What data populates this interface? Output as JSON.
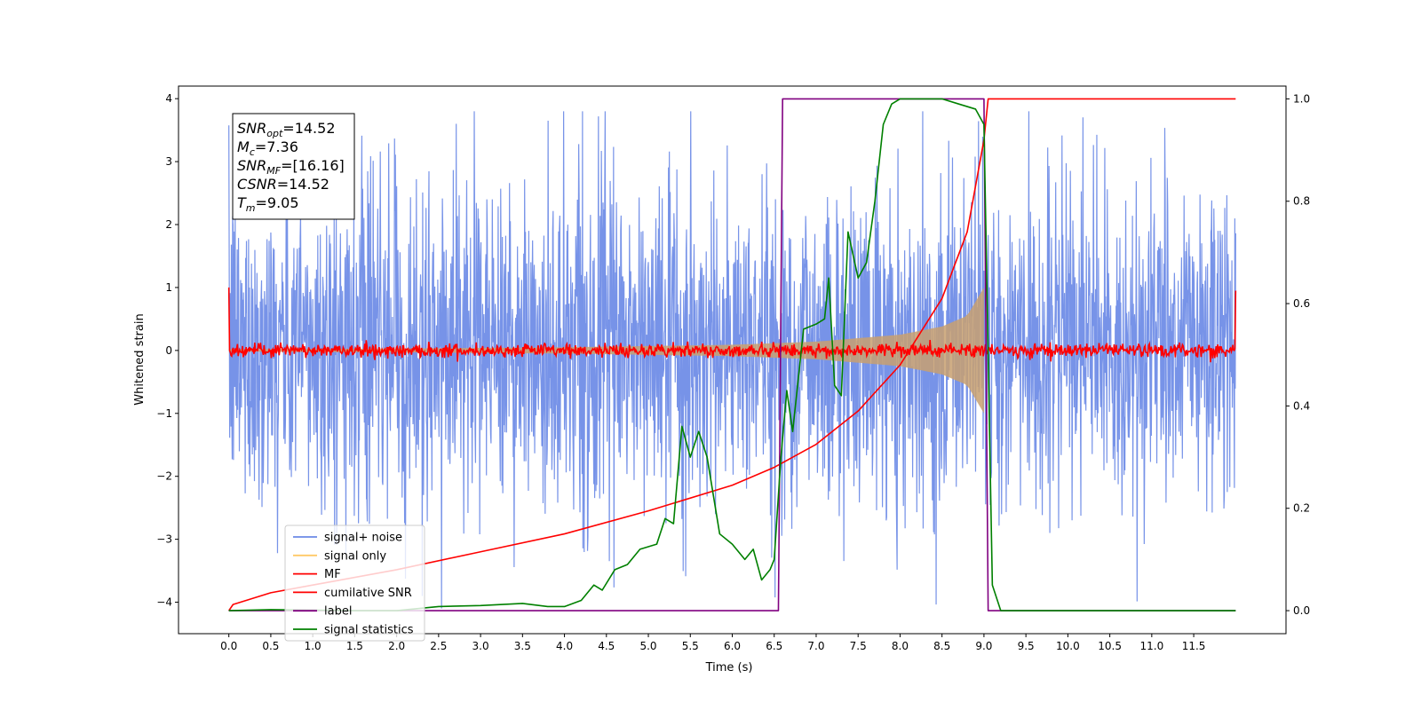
{
  "chart_data": {
    "type": "line",
    "xlabel": "Time (s)",
    "ylabel": "Whitened strain",
    "xlim": [
      -0.6,
      12.6
    ],
    "ylim": [
      -4.5,
      4.2
    ],
    "y2lim": [
      -0.045,
      1.025
    ],
    "x_ticks": [
      0.0,
      0.5,
      1.0,
      1.5,
      2.0,
      2.5,
      3.0,
      3.5,
      4.0,
      4.5,
      5.0,
      5.5,
      6.0,
      6.5,
      7.0,
      7.5,
      8.0,
      8.5,
      9.0,
      9.5,
      10.0,
      10.5,
      11.0,
      11.5
    ],
    "x_tick_labels": [
      "0.0",
      "0.5",
      "1.0",
      "1.5",
      "2.0",
      "2.5",
      "3.0",
      "3.5",
      "4.0",
      "4.5",
      "5.0",
      "5.5",
      "6.0",
      "6.5",
      "7.0",
      "7.5",
      "8.0",
      "8.5",
      "9.0",
      "9.5",
      "10.0",
      "10.5",
      "11.0",
      "11.5"
    ],
    "y_ticks": [
      -4,
      -3,
      -2,
      -1,
      0,
      1,
      2,
      3,
      4
    ],
    "y_tick_labels": [
      "−4",
      "−3",
      "−2",
      "−1",
      "0",
      "1",
      "2",
      "3",
      "4"
    ],
    "y2_ticks": [
      0.0,
      0.2,
      0.4,
      0.6,
      0.8,
      1.0
    ],
    "y2_tick_labels": [
      "0.0",
      "0.2",
      "0.4",
      "0.6",
      "0.8",
      "1.0"
    ],
    "legend": {
      "placement": "lower left",
      "entries": [
        {
          "name": "signal+ noise",
          "color": "#6b8ae6"
        },
        {
          "name": "signal only",
          "color": "#ffc966"
        },
        {
          "name": "MF",
          "color": "#ff0000"
        },
        {
          "name": "cumilative SNR",
          "color": "#ff0000"
        },
        {
          "name": "label",
          "color": "#800080"
        },
        {
          "name": "signal statistics",
          "color": "#008000"
        }
      ]
    },
    "annotation": {
      "lines": [
        {
          "sym": "SNR",
          "sub": "opt",
          "val": "=14.52"
        },
        {
          "sym": "M",
          "sub": "c",
          "val": "=7.36"
        },
        {
          "sym": "SNR",
          "sub": "MF",
          "val": "=[16.16]"
        },
        {
          "sym": "CSNR",
          "sub": "",
          "val": "=14.52"
        },
        {
          "sym": "T",
          "sub": "m",
          "val": "=9.05"
        }
      ]
    },
    "series": [
      {
        "name": "signal+ noise",
        "axis": "left",
        "kind": "noise_band",
        "color": "#6b8ae6",
        "x_range": [
          0.0,
          12.0
        ],
        "typical_range": [
          -2.0,
          2.1
        ],
        "extremes": [
          -4.1,
          3.8
        ]
      },
      {
        "name": "signal only",
        "axis": "left",
        "kind": "chirp_envelope",
        "color": "#c8a070",
        "x_range": [
          0.0,
          9.0
        ],
        "envelope": [
          [
            0.0,
            0.02
          ],
          [
            2.0,
            0.03
          ],
          [
            4.0,
            0.05
          ],
          [
            6.0,
            0.09
          ],
          [
            7.0,
            0.14
          ],
          [
            8.0,
            0.25
          ],
          [
            8.5,
            0.38
          ],
          [
            8.8,
            0.55
          ],
          [
            9.0,
            1.0
          ]
        ]
      },
      {
        "name": "MF",
        "axis": "left",
        "kind": "noisy_line",
        "color": "#ff0000",
        "x_range": [
          0.0,
          12.0
        ],
        "amplitude": 0.1,
        "edge_points": [
          [
            0.0,
            1.0
          ],
          [
            12.0,
            0.95
          ]
        ]
      },
      {
        "name": "cumilative SNR",
        "axis": "right",
        "color": "#ff0000",
        "points": [
          [
            0.0,
            0.0
          ],
          [
            0.05,
            0.012
          ],
          [
            0.5,
            0.035
          ],
          [
            1.0,
            0.05
          ],
          [
            2.0,
            0.08
          ],
          [
            3.0,
            0.115
          ],
          [
            4.0,
            0.15
          ],
          [
            5.0,
            0.195
          ],
          [
            6.0,
            0.245
          ],
          [
            6.5,
            0.28
          ],
          [
            7.0,
            0.325
          ],
          [
            7.5,
            0.39
          ],
          [
            8.0,
            0.48
          ],
          [
            8.5,
            0.61
          ],
          [
            8.8,
            0.74
          ],
          [
            9.0,
            0.92
          ],
          [
            9.05,
            1.0
          ],
          [
            12.0,
            1.0
          ]
        ]
      },
      {
        "name": "label",
        "axis": "right",
        "color": "#800080",
        "points": [
          [
            0.0,
            0.0
          ],
          [
            6.55,
            0.0
          ],
          [
            6.6,
            1.0
          ],
          [
            9.0,
            1.0
          ],
          [
            9.05,
            0.0
          ],
          [
            12.0,
            0.0
          ]
        ]
      },
      {
        "name": "signal statistics",
        "axis": "right",
        "color": "#008000",
        "points": [
          [
            0.0,
            0.0
          ],
          [
            0.5,
            0.002
          ],
          [
            1.0,
            0.001
          ],
          [
            1.5,
            0.0
          ],
          [
            2.0,
            0.0
          ],
          [
            2.5,
            0.008
          ],
          [
            3.0,
            0.01
          ],
          [
            3.5,
            0.014
          ],
          [
            3.8,
            0.008
          ],
          [
            4.0,
            0.008
          ],
          [
            4.2,
            0.02
          ],
          [
            4.35,
            0.05
          ],
          [
            4.45,
            0.04
          ],
          [
            4.6,
            0.08
          ],
          [
            4.75,
            0.09
          ],
          [
            4.9,
            0.12
          ],
          [
            5.0,
            0.125
          ],
          [
            5.1,
            0.13
          ],
          [
            5.2,
            0.18
          ],
          [
            5.3,
            0.17
          ],
          [
            5.4,
            0.36
          ],
          [
            5.5,
            0.3
          ],
          [
            5.6,
            0.35
          ],
          [
            5.7,
            0.3
          ],
          [
            5.85,
            0.15
          ],
          [
            6.0,
            0.13
          ],
          [
            6.15,
            0.1
          ],
          [
            6.25,
            0.12
          ],
          [
            6.35,
            0.06
          ],
          [
            6.45,
            0.08
          ],
          [
            6.5,
            0.1
          ],
          [
            6.58,
            0.3
          ],
          [
            6.65,
            0.43
          ],
          [
            6.72,
            0.35
          ],
          [
            6.85,
            0.55
          ],
          [
            7.0,
            0.56
          ],
          [
            7.1,
            0.57
          ],
          [
            7.15,
            0.65
          ],
          [
            7.22,
            0.44
          ],
          [
            7.3,
            0.42
          ],
          [
            7.38,
            0.74
          ],
          [
            7.5,
            0.65
          ],
          [
            7.6,
            0.68
          ],
          [
            7.7,
            0.8
          ],
          [
            7.8,
            0.95
          ],
          [
            7.9,
            0.99
          ],
          [
            8.0,
            1.0
          ],
          [
            8.5,
            1.0
          ],
          [
            8.7,
            0.99
          ],
          [
            8.9,
            0.98
          ],
          [
            9.0,
            0.95
          ],
          [
            9.05,
            0.5
          ],
          [
            9.1,
            0.05
          ],
          [
            9.2,
            0.0
          ],
          [
            12.0,
            0.0
          ]
        ]
      }
    ]
  }
}
